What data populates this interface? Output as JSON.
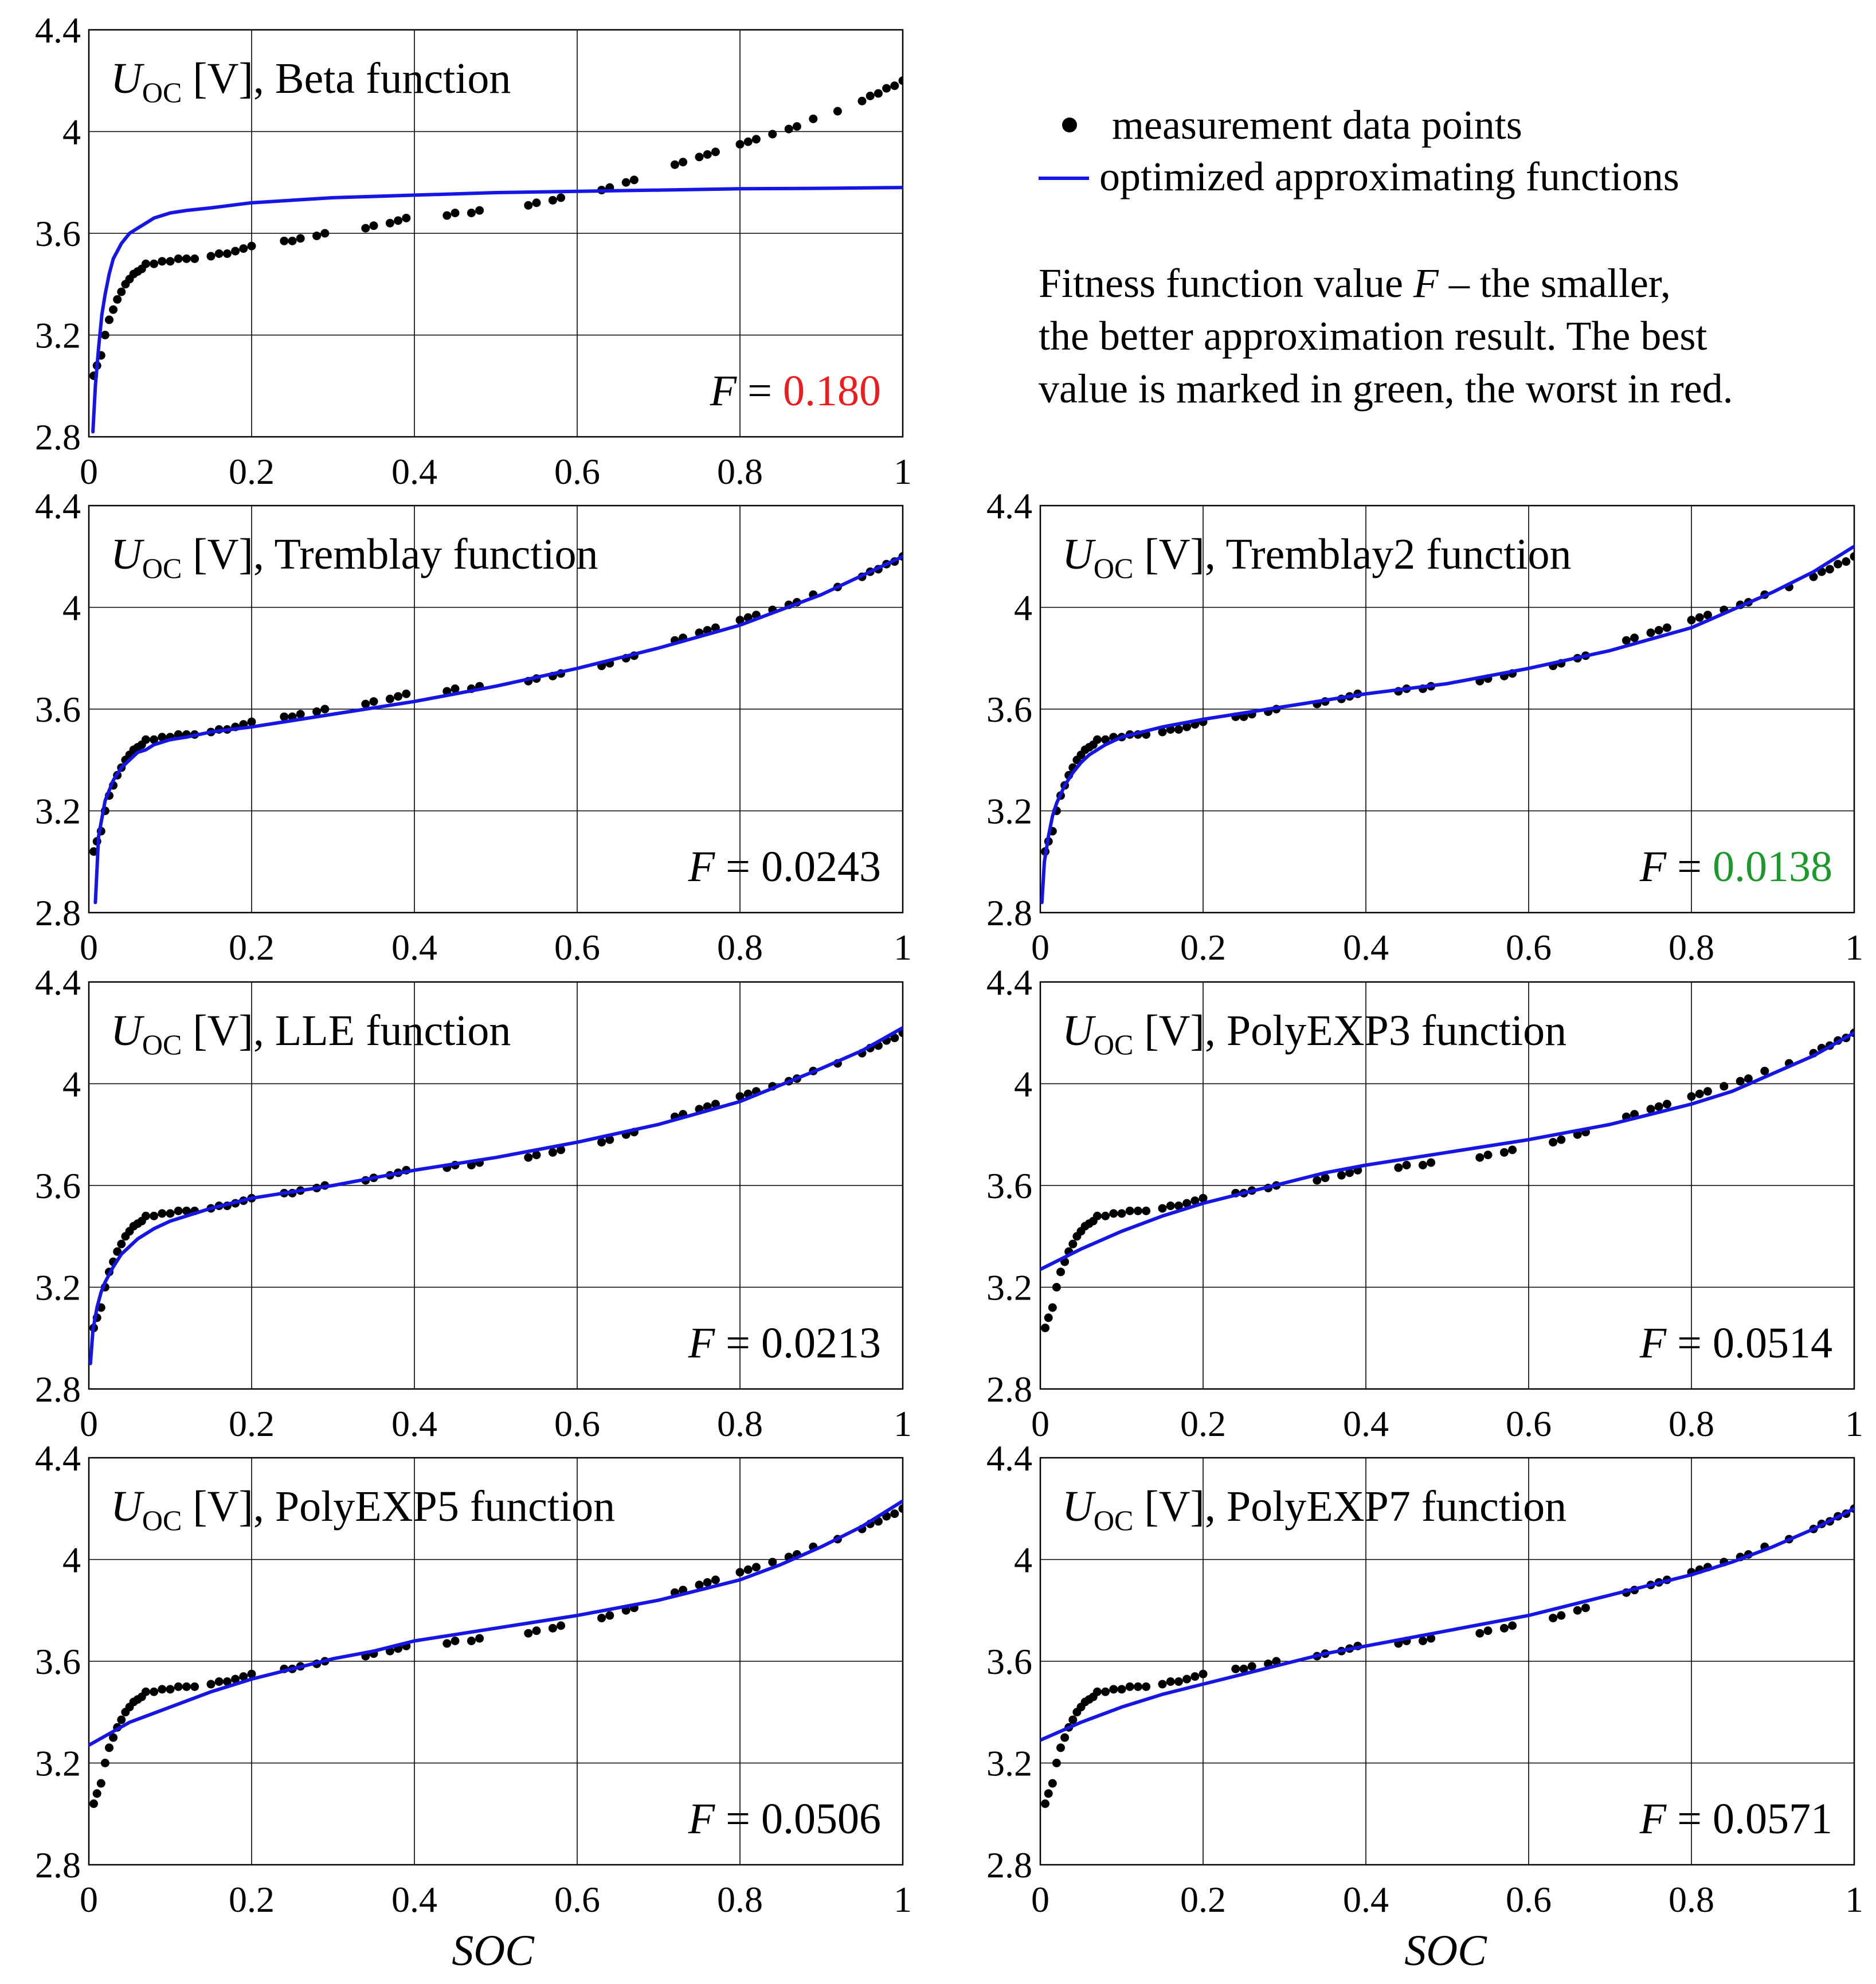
{
  "legend": {
    "points_label": "measurement data points",
    "line_label": "optimized approximating functions",
    "note_line1_pre": "Fitness function value ",
    "note_line1_var": "F",
    "note_line1_post": " –  the smaller,",
    "note_line2": "the better approximation result. The best",
    "note_line3": "value is marked in green, the worst in red."
  },
  "colors": {
    "curve": "#1515e6",
    "points": "#000000",
    "best": "#1a9a2a",
    "worst": "#ee1c1c",
    "grid": "#000000"
  },
  "xlabel": "SOC",
  "chart_data": {
    "type": "scatter",
    "y_symbol": "U",
    "y_subscript": "OC",
    "y_unit": "[V], ",
    "x_ticks": [
      "0",
      "0.2",
      "0.4",
      "0.6",
      "0.8",
      "1"
    ],
    "y_ticks": [
      "2.8",
      "3.2",
      "3.6",
      "4",
      "4.4"
    ],
    "xlim": [
      0,
      1
    ],
    "ylim": [
      2.8,
      4.4
    ],
    "measurements": {
      "soc": [
        0.006,
        0.01,
        0.015,
        0.02,
        0.025,
        0.03,
        0.035,
        0.04,
        0.045,
        0.05,
        0.055,
        0.06,
        0.065,
        0.07,
        0.08,
        0.09,
        0.1,
        0.11,
        0.12,
        0.13,
        0.15,
        0.16,
        0.17,
        0.18,
        0.19,
        0.2,
        0.24,
        0.25,
        0.26,
        0.28,
        0.29,
        0.34,
        0.35,
        0.37,
        0.38,
        0.39,
        0.44,
        0.45,
        0.47,
        0.48,
        0.54,
        0.55,
        0.57,
        0.58,
        0.63,
        0.64,
        0.66,
        0.67,
        0.72,
        0.73,
        0.75,
        0.76,
        0.77,
        0.8,
        0.81,
        0.82,
        0.84,
        0.86,
        0.87,
        0.89,
        0.92,
        0.95,
        0.96,
        0.97,
        0.98,
        0.99,
        1.0
      ],
      "uoc": [
        3.04,
        3.08,
        3.12,
        3.2,
        3.26,
        3.3,
        3.34,
        3.37,
        3.4,
        3.42,
        3.44,
        3.45,
        3.46,
        3.48,
        3.48,
        3.49,
        3.49,
        3.5,
        3.5,
        3.5,
        3.51,
        3.52,
        3.52,
        3.53,
        3.54,
        3.55,
        3.57,
        3.57,
        3.58,
        3.59,
        3.6,
        3.62,
        3.63,
        3.64,
        3.65,
        3.66,
        3.67,
        3.68,
        3.68,
        3.69,
        3.71,
        3.72,
        3.73,
        3.74,
        3.77,
        3.78,
        3.8,
        3.81,
        3.87,
        3.88,
        3.9,
        3.91,
        3.92,
        3.95,
        3.96,
        3.97,
        3.99,
        4.01,
        4.02,
        4.05,
        4.08,
        4.12,
        4.14,
        4.15,
        4.17,
        4.18,
        4.2
      ]
    },
    "panels": [
      {
        "function": "Beta function",
        "fitness_label": "F = ",
        "fitness": "0.180",
        "mark": "worst",
        "series": {
          "name": "Beta function",
          "x": [
            0.005,
            0.008,
            0.012,
            0.016,
            0.02,
            0.025,
            0.03,
            0.04,
            0.05,
            0.06,
            0.07,
            0.08,
            0.1,
            0.12,
            0.15,
            0.2,
            0.25,
            0.3,
            0.4,
            0.5,
            0.6,
            0.7,
            0.8,
            0.9,
            1.0
          ],
          "y": [
            2.82,
            3.0,
            3.15,
            3.28,
            3.36,
            3.44,
            3.5,
            3.56,
            3.6,
            3.62,
            3.64,
            3.66,
            3.68,
            3.69,
            3.7,
            3.72,
            3.73,
            3.74,
            3.75,
            3.76,
            3.765,
            3.77,
            3.775,
            3.777,
            3.78
          ]
        }
      },
      {
        "function": "Tremblay function",
        "fitness_label": "F = ",
        "fitness": "0.0243",
        "mark": "none",
        "series": {
          "name": "Tremblay function",
          "x": [
            0.008,
            0.012,
            0.02,
            0.03,
            0.04,
            0.05,
            0.06,
            0.07,
            0.08,
            0.1,
            0.12,
            0.15,
            0.2,
            0.3,
            0.4,
            0.5,
            0.6,
            0.7,
            0.8,
            0.9,
            1.0
          ],
          "y": [
            2.84,
            3.1,
            3.24,
            3.32,
            3.37,
            3.4,
            3.43,
            3.44,
            3.46,
            3.48,
            3.49,
            3.51,
            3.53,
            3.58,
            3.63,
            3.69,
            3.76,
            3.84,
            3.93,
            4.05,
            4.2
          ]
        }
      },
      {
        "function": "Tremblay2 function",
        "fitness_label": "F = ",
        "fitness": "0.0138",
        "mark": "best",
        "series": {
          "name": "Tremblay2 function",
          "x": [
            0.002,
            0.005,
            0.01,
            0.015,
            0.02,
            0.03,
            0.04,
            0.05,
            0.06,
            0.08,
            0.1,
            0.15,
            0.2,
            0.3,
            0.4,
            0.5,
            0.6,
            0.7,
            0.8,
            0.9,
            0.95,
            1.0
          ],
          "y": [
            2.84,
            3.0,
            3.1,
            3.18,
            3.23,
            3.3,
            3.35,
            3.39,
            3.42,
            3.46,
            3.49,
            3.53,
            3.56,
            3.61,
            3.66,
            3.7,
            3.76,
            3.83,
            3.92,
            4.06,
            4.14,
            4.24
          ]
        }
      },
      {
        "function": "LLE function",
        "fitness_label": "F = ",
        "fitness": "0.0213",
        "mark": "none",
        "series": {
          "name": "LLE function",
          "x": [
            0.002,
            0.005,
            0.01,
            0.015,
            0.02,
            0.03,
            0.04,
            0.05,
            0.06,
            0.08,
            0.1,
            0.15,
            0.2,
            0.3,
            0.4,
            0.5,
            0.6,
            0.7,
            0.8,
            0.9,
            0.95,
            1.0
          ],
          "y": [
            2.9,
            3.03,
            3.12,
            3.18,
            3.22,
            3.28,
            3.33,
            3.36,
            3.39,
            3.43,
            3.46,
            3.51,
            3.55,
            3.6,
            3.66,
            3.71,
            3.77,
            3.84,
            3.93,
            4.06,
            4.13,
            4.22
          ]
        }
      },
      {
        "function": "PolyEXP3 function",
        "fitness_label": "F = ",
        "fitness": "0.0514",
        "mark": "none",
        "series": {
          "name": "PolyEXP3 function",
          "x": [
            0.0,
            0.05,
            0.1,
            0.15,
            0.2,
            0.25,
            0.3,
            0.35,
            0.4,
            0.5,
            0.6,
            0.7,
            0.75,
            0.8,
            0.85,
            0.9,
            0.95,
            1.0
          ],
          "y": [
            3.27,
            3.35,
            3.42,
            3.48,
            3.53,
            3.57,
            3.61,
            3.65,
            3.68,
            3.73,
            3.78,
            3.84,
            3.88,
            3.92,
            3.97,
            4.04,
            4.11,
            4.2
          ]
        }
      },
      {
        "function": "PolyEXP5 function",
        "fitness_label": "F = ",
        "fitness": "0.0506",
        "mark": "none",
        "series": {
          "name": "PolyEXP5 function",
          "x": [
            0.0,
            0.05,
            0.1,
            0.15,
            0.2,
            0.25,
            0.3,
            0.35,
            0.4,
            0.5,
            0.6,
            0.7,
            0.75,
            0.8,
            0.85,
            0.9,
            0.95,
            1.0
          ],
          "y": [
            3.27,
            3.36,
            3.42,
            3.48,
            3.53,
            3.57,
            3.61,
            3.64,
            3.68,
            3.73,
            3.78,
            3.84,
            3.88,
            3.92,
            3.98,
            4.05,
            4.13,
            4.23
          ]
        }
      },
      {
        "function": "PolyEXP7 function",
        "fitness_label": "F = ",
        "fitness": "0.0571",
        "mark": "none",
        "series": {
          "name": "PolyEXP7 function",
          "x": [
            0.0,
            0.05,
            0.1,
            0.15,
            0.2,
            0.25,
            0.3,
            0.35,
            0.4,
            0.5,
            0.6,
            0.7,
            0.75,
            0.8,
            0.85,
            0.9,
            0.95,
            1.0
          ],
          "y": [
            3.29,
            3.36,
            3.42,
            3.47,
            3.51,
            3.55,
            3.59,
            3.63,
            3.66,
            3.72,
            3.78,
            3.86,
            3.9,
            3.94,
            3.99,
            4.05,
            4.12,
            4.2
          ]
        }
      }
    ]
  }
}
